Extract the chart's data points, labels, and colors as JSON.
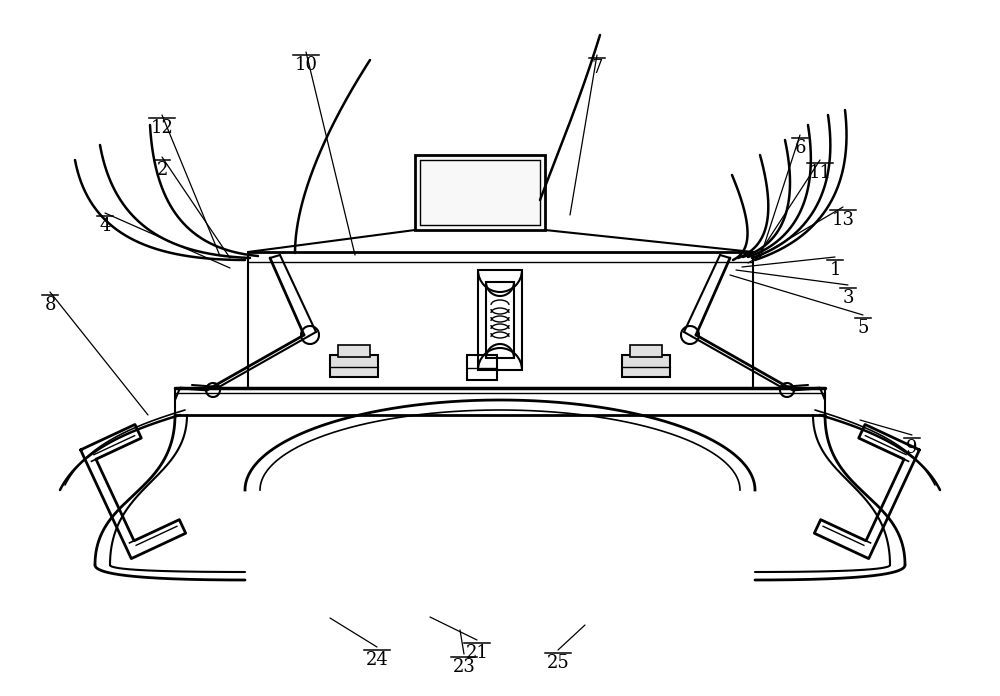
{
  "bg_color": "#ffffff",
  "line_color": "#000000",
  "figsize": [
    10.0,
    6.96
  ],
  "dpi": 100,
  "labels": [
    [
      "7",
      597,
      30,
      597,
      56
    ],
    [
      "10",
      358,
      50,
      306,
      50
    ],
    [
      "12",
      160,
      112,
      160,
      112
    ],
    [
      "2",
      160,
      155,
      160,
      155
    ],
    [
      "4",
      103,
      210,
      103,
      210
    ],
    [
      "8",
      47,
      292,
      47,
      292
    ],
    [
      "6",
      800,
      133,
      800,
      133
    ],
    [
      "11",
      822,
      158,
      822,
      158
    ],
    [
      "13",
      842,
      205,
      842,
      205
    ],
    [
      "1",
      835,
      255,
      835,
      255
    ],
    [
      "3",
      847,
      282,
      847,
      282
    ],
    [
      "5",
      863,
      312,
      863,
      312
    ],
    [
      "9",
      912,
      432,
      912,
      432
    ],
    [
      "21",
      475,
      638,
      475,
      638
    ],
    [
      "23",
      462,
      652,
      462,
      652
    ],
    [
      "24",
      375,
      645,
      375,
      645
    ],
    [
      "25",
      557,
      648,
      557,
      648
    ]
  ]
}
